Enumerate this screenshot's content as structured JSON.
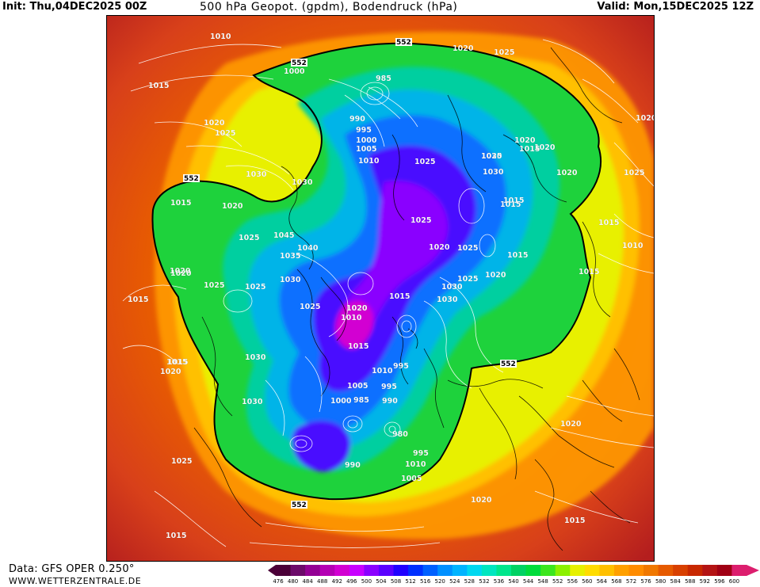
{
  "header": {
    "init_label": "Init: Thu,04DEC2025 00Z",
    "title": "500 hPa Geopot. (gpdm), Bodendruck (hPa)",
    "valid_label": "Valid: Mon,15DEC2025 12Z"
  },
  "footer": {
    "data_source": "Data: GFS OPER 0.250°",
    "site": "WWW.WETTERZENTRALE.DE"
  },
  "colorbar": {
    "ticks": [
      "476",
      "480",
      "484",
      "488",
      "492",
      "496",
      "500",
      "504",
      "508",
      "512",
      "516",
      "520",
      "524",
      "528",
      "532",
      "536",
      "540",
      "544",
      "548",
      "552",
      "556",
      "560",
      "564",
      "568",
      "572",
      "576",
      "580",
      "584",
      "588",
      "592",
      "596",
      "600"
    ],
    "colors": [
      "#4b0038",
      "#6c0a6a",
      "#930094",
      "#b400b4",
      "#d200d2",
      "#c800ff",
      "#8a00ff",
      "#5a00ff",
      "#2000ff",
      "#0030ff",
      "#0060ff",
      "#0090ff",
      "#00b4ff",
      "#00d8f0",
      "#00e6c0",
      "#00e68c",
      "#00d264",
      "#00dc3c",
      "#3ce61e",
      "#8cf000",
      "#e6f000",
      "#ffdc00",
      "#ffc000",
      "#ffa000",
      "#ff8c00",
      "#f07800",
      "#e65a00",
      "#d84000",
      "#c82800",
      "#b41414",
      "#a00014",
      "#dc1e6e"
    ]
  },
  "map": {
    "geopotential_contour_label": "552",
    "contour_labels": [
      {
        "text": "552"
      },
      {
        "text": "552"
      },
      {
        "text": "552"
      },
      {
        "text": "552"
      },
      {
        "text": "552"
      },
      {
        "text": "1010"
      },
      {
        "text": "1015"
      },
      {
        "text": "1020"
      },
      {
        "text": "1025"
      },
      {
        "text": "1030"
      },
      {
        "text": "1025"
      },
      {
        "text": "1020"
      },
      {
        "text": "1000"
      },
      {
        "text": "985"
      },
      {
        "text": "990"
      },
      {
        "text": "995"
      },
      {
        "text": "1000"
      },
      {
        "text": "1005"
      },
      {
        "text": "1010"
      },
      {
        "text": "1030"
      },
      {
        "text": "1025"
      },
      {
        "text": "1030"
      },
      {
        "text": "1025"
      },
      {
        "text": "1015"
      },
      {
        "text": "1020"
      },
      {
        "text": "1020"
      },
      {
        "text": "1015"
      },
      {
        "text": "1020"
      },
      {
        "text": "1025"
      },
      {
        "text": "1045"
      },
      {
        "text": "1040"
      },
      {
        "text": "1035"
      },
      {
        "text": "1030"
      },
      {
        "text": "1025"
      },
      {
        "text": "1025"
      },
      {
        "text": "1020"
      },
      {
        "text": "1010"
      },
      {
        "text": "1015"
      },
      {
        "text": "1015"
      },
      {
        "text": "1015"
      },
      {
        "text": "1020"
      },
      {
        "text": "1015"
      },
      {
        "text": "1020"
      },
      {
        "text": "1015"
      },
      {
        "text": "1030"
      },
      {
        "text": "1010"
      },
      {
        "text": "1005"
      },
      {
        "text": "1000"
      },
      {
        "text": "985"
      },
      {
        "text": "995"
      },
      {
        "text": "990"
      },
      {
        "text": "995"
      },
      {
        "text": "980"
      },
      {
        "text": "1030"
      },
      {
        "text": "1020"
      },
      {
        "text": "1015"
      },
      {
        "text": "1025"
      },
      {
        "text": "1030"
      },
      {
        "text": "1020"
      },
      {
        "text": "1025"
      },
      {
        "text": "1015"
      },
      {
        "text": "1025"
      },
      {
        "text": "1030"
      },
      {
        "text": "1020"
      },
      {
        "text": "1025"
      },
      {
        "text": "1015"
      },
      {
        "text": "1030"
      },
      {
        "text": "1025"
      },
      {
        "text": "1020"
      },
      {
        "text": "1020"
      },
      {
        "text": "1015"
      },
      {
        "text": "1010"
      },
      {
        "text": "1015"
      },
      {
        "text": "1020"
      },
      {
        "text": "1025"
      },
      {
        "text": "1020"
      },
      {
        "text": "1015"
      },
      {
        "text": "990"
      },
      {
        "text": "995"
      },
      {
        "text": "1005"
      },
      {
        "text": "1010"
      },
      {
        "text": "1020"
      },
      {
        "text": "1015"
      }
    ]
  }
}
